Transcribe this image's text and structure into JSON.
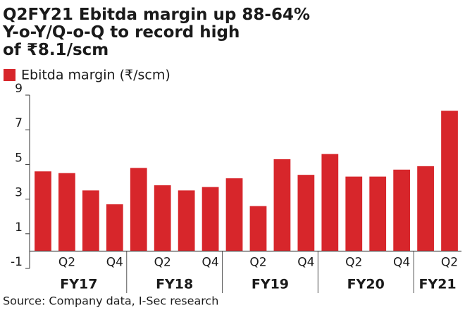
{
  "chart_data": {
    "type": "bar",
    "title": [
      "Q2FY21 Ebitda margin up 88-64%",
      "Y-o-Y/Q-o-Q to record high",
      "of ₹8.1/scm"
    ],
    "series": [
      {
        "name": "Ebitda margin (₹/scm)",
        "color": "#d7262b",
        "values": [
          4.6,
          4.5,
          3.5,
          2.7,
          4.8,
          3.8,
          3.5,
          3.7,
          4.2,
          2.6,
          5.3,
          4.4,
          5.6,
          4.3,
          4.3,
          4.7,
          4.9,
          8.1
        ]
      }
    ],
    "categories": [
      null,
      "Q2",
      null,
      "Q4",
      null,
      "Q2",
      null,
      "Q4",
      null,
      "Q2",
      null,
      "Q4",
      null,
      "Q2",
      null,
      "Q4",
      null,
      "Q2"
    ],
    "groups": [
      {
        "label": "FY17",
        "size": 4
      },
      {
        "label": "FY18",
        "size": 4
      },
      {
        "label": "FY19",
        "size": 4
      },
      {
        "label": "FY20",
        "size": 4
      },
      {
        "label": "FY21",
        "size": 2
      }
    ],
    "ylim": [
      -1,
      9
    ],
    "yticks": [
      9,
      7,
      5,
      3,
      1,
      -1
    ],
    "source": "Source: Company data, I-Sec research"
  }
}
